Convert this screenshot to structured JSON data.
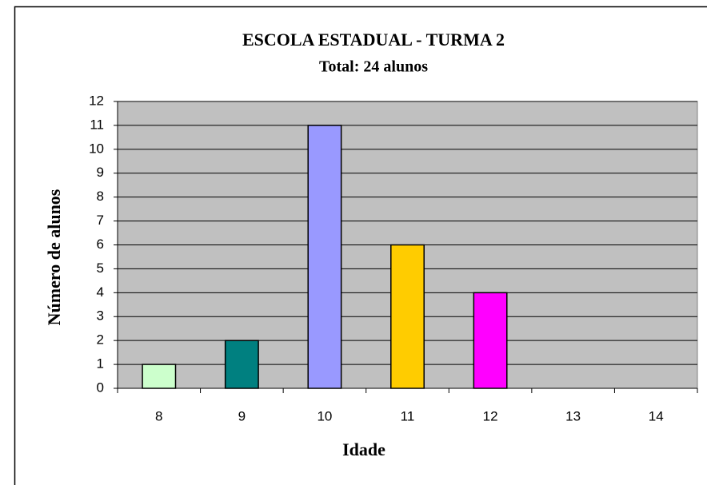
{
  "chart_data": {
    "type": "bar",
    "title": "ESCOLA ESTADUAL - TURMA 2",
    "subtitle": "Total: 24 alunos",
    "x_label": "Idade",
    "y_label": "Número de alunos",
    "categories": [
      "8",
      "9",
      "10",
      "11",
      "12",
      "13",
      "14"
    ],
    "values": [
      1,
      2,
      11,
      6,
      4,
      0,
      0
    ],
    "colors": [
      "#ccffcc",
      "#008080",
      "#9999ff",
      "#ffcc00",
      "#ff00ff",
      "#ccffff",
      "#660066"
    ],
    "ylim": [
      0,
      12
    ],
    "yticks": [
      0,
      1,
      2,
      3,
      4,
      5,
      6,
      7,
      8,
      9,
      10,
      11,
      12
    ],
    "grid": true
  }
}
